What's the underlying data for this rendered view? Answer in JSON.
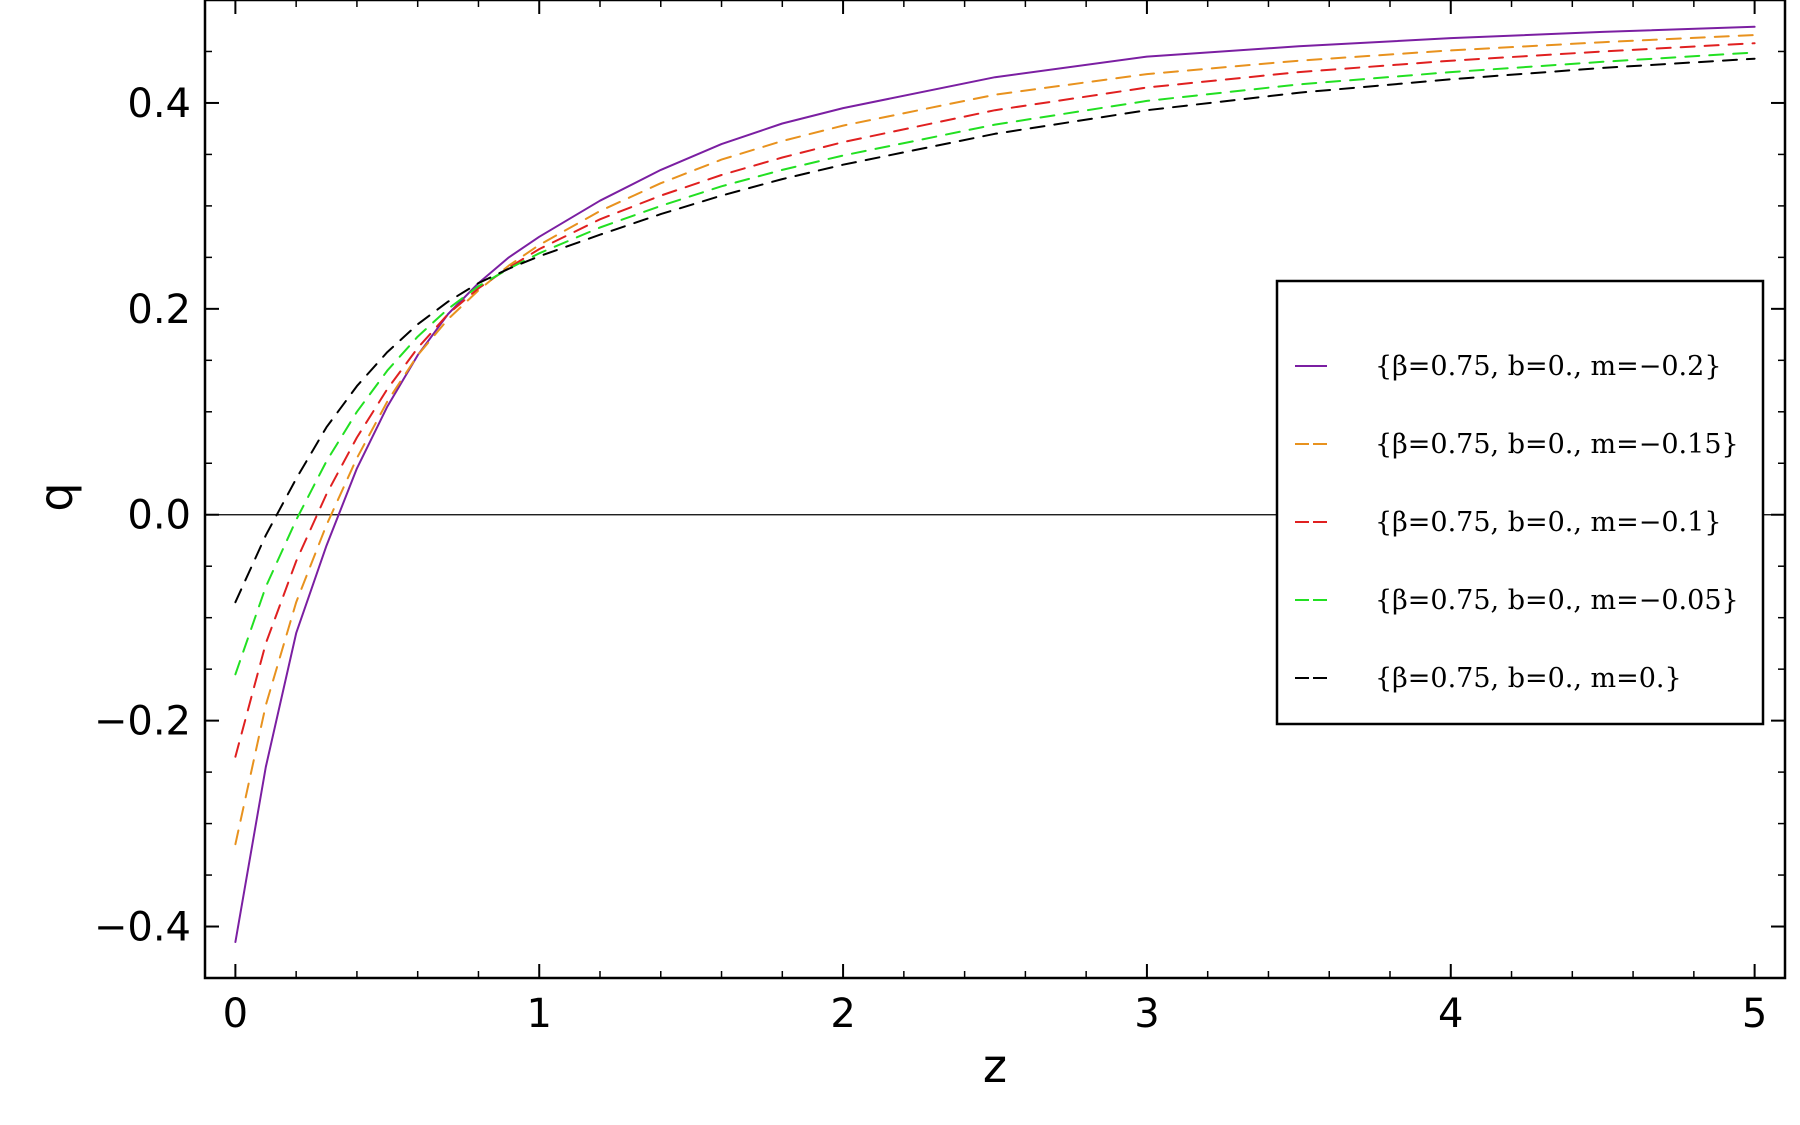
{
  "chart_data": {
    "type": "line",
    "title": "",
    "xlabel": "z",
    "ylabel": "q",
    "xlim": [
      -0.1,
      5.1
    ],
    "ylim": [
      -0.45,
      0.5
    ],
    "xticks": [
      0,
      1,
      2,
      3,
      4,
      5
    ],
    "xtick_labels": [
      "0",
      "1",
      "2",
      "3",
      "4",
      "5"
    ],
    "yticks": [
      -0.4,
      -0.2,
      0.0,
      0.2,
      0.4
    ],
    "ytick_labels": [
      "−0.4",
      "−0.2",
      "0.0",
      "0.2",
      "0.4"
    ],
    "grid": false,
    "zero_line": true,
    "legend_position": "right",
    "x": [
      0,
      0.1,
      0.2,
      0.3,
      0.4,
      0.5,
      0.6,
      0.7,
      0.8,
      0.9,
      1.0,
      1.2,
      1.4,
      1.6,
      1.8,
      2.0,
      2.5,
      3.0,
      3.5,
      4.0,
      4.5,
      5.0
    ],
    "series": [
      {
        "name": "{β=0.75, b=0., m=−0.2}",
        "color": "#7b1fa2",
        "dash": "solid",
        "values": [
          -0.415,
          -0.245,
          -0.115,
          -0.03,
          0.045,
          0.105,
          0.155,
          0.195,
          0.225,
          0.25,
          0.27,
          0.305,
          0.335,
          0.36,
          0.38,
          0.395,
          0.425,
          0.445,
          0.455,
          0.463,
          0.469,
          0.474
        ]
      },
      {
        "name": "{β=0.75, b=0., m=−0.15}",
        "color": "#e8921e",
        "dash": "dashed",
        "values": [
          -0.32,
          -0.185,
          -0.085,
          -0.01,
          0.055,
          0.11,
          0.155,
          0.19,
          0.218,
          0.242,
          0.262,
          0.295,
          0.322,
          0.345,
          0.363,
          0.378,
          0.408,
          0.428,
          0.441,
          0.451,
          0.459,
          0.466
        ]
      },
      {
        "name": "{β=0.75, b=0., m=−0.1}",
        "color": "#e02020",
        "dash": "dashed",
        "values": [
          -0.235,
          -0.125,
          -0.045,
          0.02,
          0.075,
          0.122,
          0.162,
          0.195,
          0.22,
          0.24,
          0.258,
          0.287,
          0.31,
          0.33,
          0.347,
          0.362,
          0.393,
          0.415,
          0.43,
          0.441,
          0.45,
          0.458
        ]
      },
      {
        "name": "{β=0.75, b=0., m=−0.05}",
        "color": "#22e022",
        "dash": "dashed",
        "values": [
          -0.155,
          -0.07,
          -0.005,
          0.052,
          0.1,
          0.14,
          0.173,
          0.2,
          0.222,
          0.239,
          0.254,
          0.279,
          0.3,
          0.319,
          0.335,
          0.349,
          0.379,
          0.402,
          0.418,
          0.43,
          0.44,
          0.449
        ]
      },
      {
        "name": "{β=0.75, b=0., m=0.}",
        "color": "#000000",
        "dash": "dashed",
        "values": [
          -0.085,
          -0.02,
          0.035,
          0.085,
          0.125,
          0.158,
          0.185,
          0.207,
          0.225,
          0.239,
          0.251,
          0.272,
          0.292,
          0.31,
          0.326,
          0.34,
          0.37,
          0.393,
          0.41,
          0.423,
          0.434,
          0.443
        ]
      }
    ]
  }
}
